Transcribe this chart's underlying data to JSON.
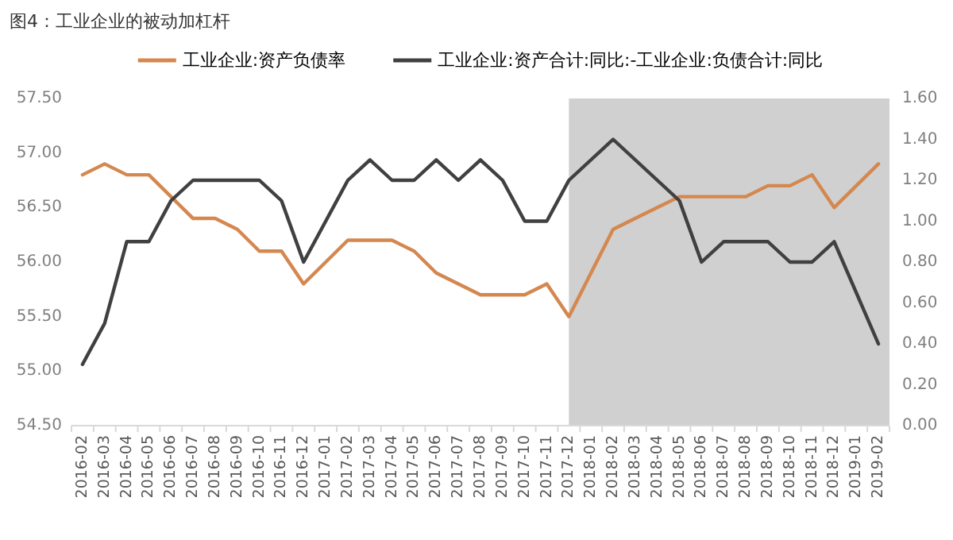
{
  "chart_data": {
    "type": "line",
    "title": "图4：工业企业的被动加杠杆",
    "categories": [
      "2016-02",
      "2016-03",
      "2016-04",
      "2016-05",
      "2016-06",
      "2016-07",
      "2016-08",
      "2016-09",
      "2016-10",
      "2016-11",
      "2016-12",
      "2017-01",
      "2017-02",
      "2017-03",
      "2017-04",
      "2017-05",
      "2017-06",
      "2017-07",
      "2017-08",
      "2017-09",
      "2017-10",
      "2017-11",
      "2017-12",
      "2018-01",
      "2018-02",
      "2018-03",
      "2018-04",
      "2018-05",
      "2018-06",
      "2018-07",
      "2018-08",
      "2018-09",
      "2018-10",
      "2018-11",
      "2018-12",
      "2019-01",
      "2019-02"
    ],
    "series": [
      {
        "name": "工业企业:资产负债率",
        "color": "#d4884f",
        "values": [
          56.8,
          56.9,
          56.8,
          56.8,
          56.6,
          56.4,
          56.4,
          56.3,
          56.1,
          56.1,
          55.8,
          56.0,
          56.2,
          56.2,
          56.2,
          56.1,
          55.9,
          55.8,
          55.7,
          55.7,
          55.7,
          55.8,
          55.5,
          55.9,
          56.3,
          56.4,
          56.5,
          56.6,
          56.6,
          56.6,
          56.6,
          56.7,
          56.7,
          56.8,
          56.5,
          56.7,
          56.9
        ]
      },
      {
        "name": "工业企业:资产合计:同比:-工业企业:负债合计:同比",
        "color": "#404040",
        "axis": "y2",
        "values": [
          0.3,
          0.5,
          0.9,
          0.9,
          1.1,
          1.2,
          1.2,
          1.2,
          1.2,
          1.1,
          0.8,
          1.0,
          1.2,
          1.3,
          1.2,
          1.2,
          1.3,
          1.2,
          1.3,
          1.2,
          1.0,
          1.0,
          1.2,
          1.3,
          1.4,
          1.3,
          1.2,
          1.1,
          0.8,
          0.9,
          0.9,
          0.9,
          0.8,
          0.8,
          0.9,
          0.65,
          0.4
        ]
      }
    ],
    "ylim": [
      54.5,
      57.5
    ],
    "yticks": [
      {
        "value": 54.5,
        "label": "54.50"
      },
      {
        "value": 55,
        "label": "55.00"
      },
      {
        "value": 55.5,
        "label": "55.50"
      },
      {
        "value": 56,
        "label": "56.00"
      },
      {
        "value": 56.5,
        "label": "56.50"
      },
      {
        "value": 57,
        "label": "57.00"
      },
      {
        "value": 57.5,
        "label": "57.50"
      }
    ],
    "y2lim": [
      0,
      1.6
    ],
    "y2ticks": [
      {
        "value": 0,
        "label": "0.00"
      },
      {
        "value": 0.2,
        "label": "0.20"
      },
      {
        "value": 0.4,
        "label": "0.40"
      },
      {
        "value": 0.6,
        "label": "0.60"
      },
      {
        "value": 0.8,
        "label": "0.80"
      },
      {
        "value": 1,
        "label": "1.00"
      },
      {
        "value": 1.2,
        "label": "1.20"
      },
      {
        "value": 1.4,
        "label": "1.40"
      },
      {
        "value": 1.6,
        "label": "1.60"
      }
    ],
    "bands": [
      {
        "axis": "x",
        "from": "2017-12",
        "to": "2019-02",
        "color": "#d0d0d0"
      }
    ],
    "legend": "top",
    "grid": false,
    "marker": "none",
    "line_style": "solid"
  }
}
